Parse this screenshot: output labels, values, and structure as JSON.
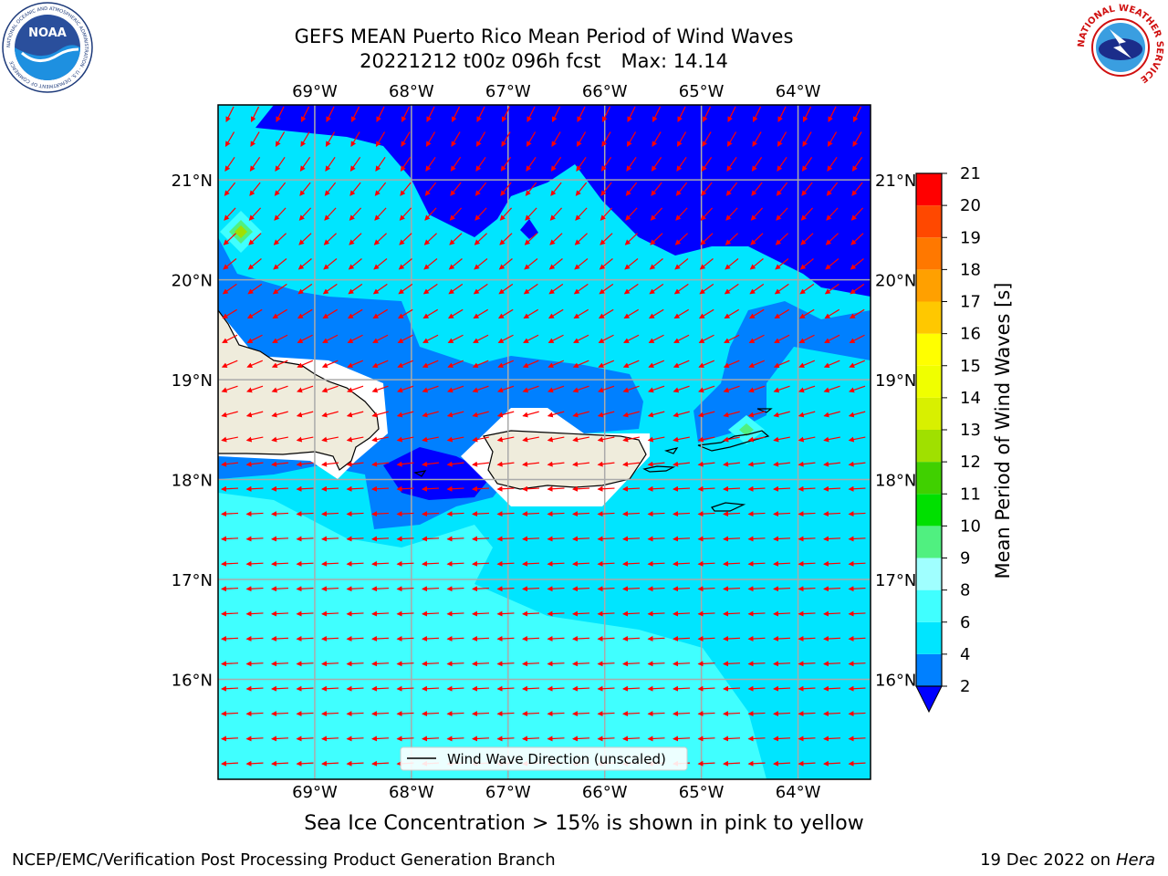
{
  "header": {
    "title_line1": "GEFS MEAN Puerto Rico Mean Period of Wind Waves",
    "title_date": "20221212 t00z 096h fcst",
    "title_max": "Max: 14.14"
  },
  "logos": {
    "left": {
      "name": "noaa-logo",
      "text": "NOAA",
      "ring_text": "NATIONAL OCEANIC AND ATMOSPHERIC ADMINISTRATION · U.S. DEPARTMENT OF COMMERCE"
    },
    "right": {
      "name": "nws-logo",
      "ring_text": "NATIONAL WEATHER SERVICE"
    }
  },
  "map": {
    "lon_ticks": [
      "69°W",
      "68°W",
      "67°W",
      "66°W",
      "65°W",
      "64°W"
    ],
    "lat_ticks": [
      "21°N",
      "20°N",
      "19°N",
      "18°N",
      "17°N",
      "16°N"
    ],
    "lon_values": [
      -69,
      -68,
      -67,
      -66,
      -65,
      -64
    ],
    "lat_values": [
      21,
      20,
      19,
      18,
      17,
      16
    ],
    "extent": {
      "lon_min": -70.0,
      "lon_max": -63.25,
      "lat_min": 15.0,
      "lat_max": 21.75
    },
    "legend_label": "Wind Wave Direction (unscaled)",
    "arrow_color": "#ff0000",
    "coast_color": "#000000",
    "land_color": "#efecdc"
  },
  "colorbar": {
    "label": "Mean Period of Wind Waves [s]",
    "ticks": [
      "2",
      "4",
      "6",
      "8",
      "9",
      "10",
      "11",
      "12",
      "13",
      "14",
      "15",
      "16",
      "17",
      "18",
      "19",
      "20",
      "21"
    ],
    "colors": [
      "#0080ff",
      "#00e5ff",
      "#40ffff",
      "#a0ffff",
      "#50f080",
      "#00e000",
      "#40d000",
      "#a0e000",
      "#d8f000",
      "#f0ff00",
      "#ffff00",
      "#ffc800",
      "#ffa000",
      "#ff7800",
      "#ff4800",
      "#ff0000"
    ],
    "under_color": "#0000ff"
  },
  "caption": "Sea Ice Concentration > 15% is shown in pink to yellow",
  "footer": {
    "left": "NCEP/EMC/Verification Post Processing Product Generation Branch",
    "right_prefix": "19 Dec 2022 on",
    "right_host": "Hera"
  }
}
